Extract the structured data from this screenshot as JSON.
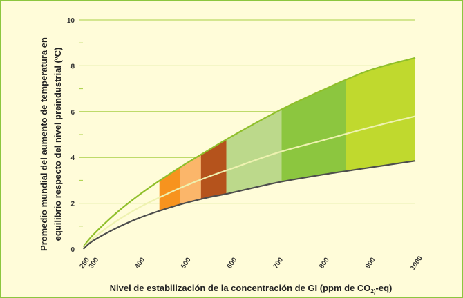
{
  "chart_data": {
    "type": "area",
    "ylabel_lines": [
      "Promedio mundial del aumento de temperatura en",
      "equilibrio respecto del nivel preindustrial (ºC)"
    ],
    "xlabel_parts": {
      "main": "Nivel de estabilización de la concentración de GI (ppm de  CO",
      "subscript": "2)",
      "suffix": "-eq)"
    },
    "x_ticks": [
      280,
      300,
      400,
      500,
      600,
      700,
      800,
      900,
      1000
    ],
    "y_ticks": [
      0,
      2,
      4,
      6,
      8,
      10
    ],
    "xlim": [
      270,
      1000
    ],
    "ylim": [
      0,
      10
    ],
    "grid": true,
    "series": [
      {
        "role": "upper",
        "x": [
          280,
          300,
          350,
          400,
          450,
          500,
          550,
          600,
          700,
          800,
          900,
          1000
        ],
        "y": [
          0.1,
          0.6,
          1.55,
          2.35,
          3.05,
          3.7,
          4.3,
          4.9,
          6.0,
          6.95,
          7.8,
          8.35
        ]
      },
      {
        "role": "best-estimate",
        "x": [
          280,
          300,
          350,
          400,
          450,
          500,
          550,
          600,
          700,
          800,
          900,
          1000
        ],
        "y": [
          0.05,
          0.45,
          1.2,
          1.8,
          2.3,
          2.75,
          3.15,
          3.5,
          4.2,
          4.75,
          5.3,
          5.8
        ]
      },
      {
        "role": "lower",
        "x": [
          280,
          300,
          350,
          400,
          450,
          500,
          550,
          600,
          700,
          800,
          900,
          1000
        ],
        "y": [
          0.0,
          0.35,
          0.9,
          1.35,
          1.7,
          2.0,
          2.25,
          2.45,
          2.9,
          3.25,
          3.55,
          3.85
        ]
      }
    ],
    "bands": [
      {
        "x0": 445,
        "x1": 490,
        "color": "#f7931e"
      },
      {
        "x0": 490,
        "x1": 535,
        "color": "#fbb66a"
      },
      {
        "x0": 535,
        "x1": 590,
        "color": "#b5531c"
      },
      {
        "x0": 590,
        "x1": 710,
        "color": "#bcd98b"
      },
      {
        "x0": 710,
        "x1": 850,
        "color": "#8cc63f"
      },
      {
        "x0": 850,
        "x1": 1000,
        "color": "#c0d92e"
      }
    ],
    "colors": {
      "background": "#fffcd9",
      "envelope": "#c0d92e",
      "upper_line": "#8fbf2a",
      "mid_line": "#eef2b0",
      "lower_line": "#4d4d4d",
      "grid": "#a8cf45",
      "frame": "#8cc63f"
    }
  }
}
